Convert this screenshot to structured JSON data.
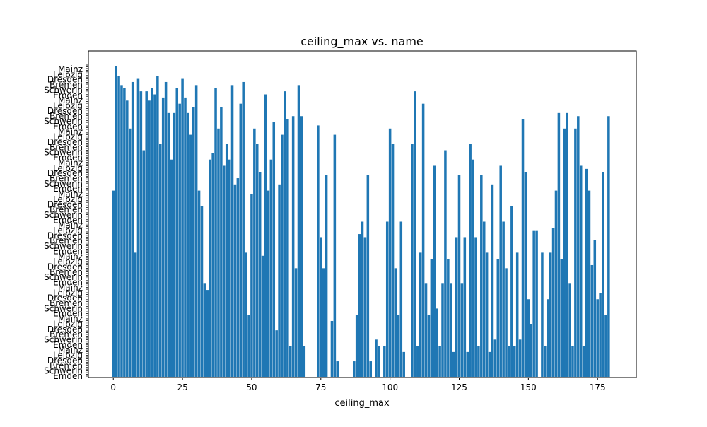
{
  "chart_data": {
    "type": "bar",
    "orientation": "vertical",
    "title": "ceiling_max vs. name",
    "xlabel": "ceiling_max",
    "ylabel": "",
    "xlim": [
      -9,
      189
    ],
    "x_ticks": [
      0,
      25,
      50,
      75,
      100,
      125,
      150,
      175
    ],
    "category_count": 180,
    "y_tick_labels_visible_fragments": [
      "Emden",
      "Schwerin",
      "Bremen",
      "Dresden",
      "Leipzig",
      "Mainz"
    ],
    "color": "#1f77b4",
    "grid": false,
    "legend": "none",
    "values_note": "",
    "bars": [
      [
        0,
        60
      ],
      [
        1,
        100
      ],
      [
        2,
        97
      ],
      [
        3,
        94
      ],
      [
        4,
        93
      ],
      [
        5,
        89
      ],
      [
        6,
        80
      ],
      [
        7,
        95
      ],
      [
        8,
        40
      ],
      [
        9,
        96
      ],
      [
        10,
        92
      ],
      [
        11,
        73
      ],
      [
        12,
        92
      ],
      [
        13,
        89
      ],
      [
        14,
        93
      ],
      [
        15,
        91
      ],
      [
        16,
        97
      ],
      [
        17,
        75
      ],
      [
        18,
        90
      ],
      [
        19,
        95
      ],
      [
        20,
        85
      ],
      [
        21,
        70
      ],
      [
        22,
        85
      ],
      [
        23,
        93
      ],
      [
        24,
        88
      ],
      [
        25,
        96
      ],
      [
        26,
        90
      ],
      [
        27,
        85
      ],
      [
        28,
        78
      ],
      [
        29,
        87
      ],
      [
        30,
        94
      ],
      [
        31,
        60
      ],
      [
        32,
        55
      ],
      [
        33,
        30
      ],
      [
        34,
        28
      ],
      [
        35,
        70
      ],
      [
        36,
        72
      ],
      [
        37,
        93
      ],
      [
        38,
        80
      ],
      [
        39,
        87
      ],
      [
        40,
        68
      ],
      [
        41,
        75
      ],
      [
        42,
        70
      ],
      [
        43,
        94
      ],
      [
        44,
        62
      ],
      [
        45,
        64
      ],
      [
        46,
        88
      ],
      [
        47,
        95
      ],
      [
        48,
        40
      ],
      [
        49,
        20
      ],
      [
        50,
        59
      ],
      [
        51,
        80
      ],
      [
        52,
        75
      ],
      [
        53,
        66
      ],
      [
        54,
        39
      ],
      [
        55,
        91
      ],
      [
        56,
        60
      ],
      [
        57,
        70
      ],
      [
        58,
        82
      ],
      [
        59,
        15
      ],
      [
        60,
        62
      ],
      [
        61,
        78
      ],
      [
        62,
        92
      ],
      [
        63,
        83
      ],
      [
        64,
        10
      ],
      [
        65,
        84
      ],
      [
        66,
        35
      ],
      [
        67,
        94
      ],
      [
        68,
        84
      ],
      [
        69,
        10
      ],
      [
        70,
        0
      ],
      [
        71,
        0
      ],
      [
        72,
        0
      ],
      [
        73,
        0
      ],
      [
        74,
        81
      ],
      [
        75,
        45
      ],
      [
        76,
        35
      ],
      [
        77,
        65
      ],
      [
        78,
        0
      ],
      [
        79,
        18
      ],
      [
        80,
        78
      ],
      [
        81,
        5
      ],
      [
        82,
        0
      ],
      [
        83,
        0
      ],
      [
        84,
        0
      ],
      [
        85,
        0
      ],
      [
        86,
        0
      ],
      [
        87,
        5
      ],
      [
        88,
        20
      ],
      [
        89,
        46
      ],
      [
        90,
        50
      ],
      [
        91,
        45
      ],
      [
        92,
        65
      ],
      [
        93,
        5
      ],
      [
        94,
        0
      ],
      [
        95,
        12
      ],
      [
        96,
        10
      ],
      [
        97,
        0
      ],
      [
        98,
        10
      ],
      [
        99,
        50
      ],
      [
        100,
        80
      ],
      [
        101,
        75
      ],
      [
        102,
        35
      ],
      [
        103,
        20
      ],
      [
        104,
        50
      ],
      [
        105,
        8
      ],
      [
        106,
        0
      ],
      [
        107,
        0
      ],
      [
        108,
        75
      ],
      [
        109,
        92
      ],
      [
        110,
        10
      ],
      [
        111,
        40
      ],
      [
        112,
        88
      ],
      [
        113,
        30
      ],
      [
        114,
        20
      ],
      [
        115,
        38
      ],
      [
        116,
        68
      ],
      [
        117,
        22
      ],
      [
        118,
        10
      ],
      [
        119,
        30
      ],
      [
        120,
        73
      ],
      [
        121,
        38
      ],
      [
        122,
        30
      ],
      [
        123,
        8
      ],
      [
        124,
        45
      ],
      [
        125,
        65
      ],
      [
        126,
        30
      ],
      [
        127,
        45
      ],
      [
        128,
        8
      ],
      [
        129,
        75
      ],
      [
        130,
        70
      ],
      [
        131,
        45
      ],
      [
        132,
        10
      ],
      [
        133,
        65
      ],
      [
        134,
        50
      ],
      [
        135,
        40
      ],
      [
        136,
        8
      ],
      [
        137,
        62
      ],
      [
        138,
        12
      ],
      [
        139,
        38
      ],
      [
        140,
        68
      ],
      [
        141,
        50
      ],
      [
        142,
        35
      ],
      [
        143,
        10
      ],
      [
        144,
        55
      ],
      [
        145,
        10
      ],
      [
        146,
        40
      ],
      [
        147,
        12
      ],
      [
        148,
        83
      ],
      [
        149,
        66
      ],
      [
        150,
        25
      ],
      [
        151,
        17
      ],
      [
        152,
        47
      ],
      [
        153,
        47
      ],
      [
        154,
        0
      ],
      [
        155,
        40
      ],
      [
        156,
        10
      ],
      [
        157,
        25
      ],
      [
        158,
        40
      ],
      [
        159,
        48
      ],
      [
        160,
        60
      ],
      [
        161,
        85
      ],
      [
        162,
        38
      ],
      [
        163,
        80
      ],
      [
        164,
        85
      ],
      [
        165,
        30
      ],
      [
        166,
        10
      ],
      [
        167,
        80
      ],
      [
        168,
        84
      ],
      [
        169,
        68
      ],
      [
        170,
        10
      ],
      [
        171,
        67
      ],
      [
        172,
        60
      ],
      [
        173,
        36
      ],
      [
        174,
        44
      ],
      [
        175,
        25
      ],
      [
        176,
        27
      ],
      [
        177,
        66
      ],
      [
        178,
        20
      ],
      [
        179,
        84
      ]
    ]
  }
}
